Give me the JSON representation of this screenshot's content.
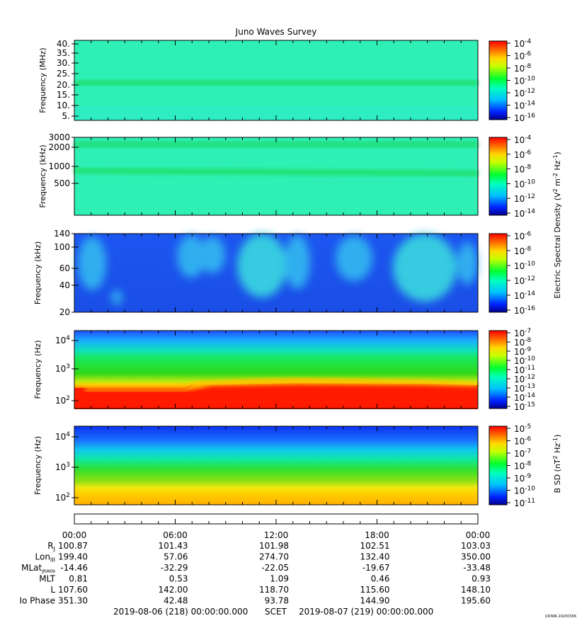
{
  "title": "Juno Waves Survey",
  "stamp": "UIOWA 20200306",
  "chart_data": {
    "type": "heatmap",
    "x_ticks": [
      "00:00",
      "06:00",
      "12:00",
      "18:00",
      "00:00"
    ],
    "panels": [
      {
        "ylabel": "Frequency (MHz)",
        "ytick_labels": [
          "40.",
          "35.",
          "30.",
          "25.",
          "20.",
          "15.",
          "10.",
          "5."
        ],
        "colorbar_ticks": [
          {
            "base": "10",
            "exp": "-4"
          },
          {
            "base": "10",
            "exp": "-6"
          },
          {
            "base": "10",
            "exp": "-8"
          },
          {
            "base": "10",
            "exp": "-10"
          },
          {
            "base": "10",
            "exp": "-12"
          },
          {
            "base": "10",
            "exp": "-14"
          },
          {
            "base": "10",
            "exp": "-16"
          }
        ]
      },
      {
        "ylabel": "Frequency (kHz)",
        "ytick_labels": [
          "3000",
          "2000",
          "1000",
          "500"
        ],
        "colorbar_ticks": [
          {
            "base": "10",
            "exp": "-4"
          },
          {
            "base": "10",
            "exp": "-6"
          },
          {
            "base": "10",
            "exp": "-8"
          },
          {
            "base": "10",
            "exp": "-10"
          },
          {
            "base": "10",
            "exp": "-12"
          },
          {
            "base": "10",
            "exp": "-14"
          }
        ]
      },
      {
        "ylabel": "Frequency (kHz)",
        "ytick_labels": [
          "140",
          "100",
          "60",
          "40",
          "20"
        ],
        "colorbar_ticks": [
          {
            "base": "10",
            "exp": "-6"
          },
          {
            "base": "10",
            "exp": "-8"
          },
          {
            "base": "10",
            "exp": "-10"
          },
          {
            "base": "10",
            "exp": "-12"
          },
          {
            "base": "10",
            "exp": "-14"
          },
          {
            "base": "10",
            "exp": "-16"
          }
        ]
      },
      {
        "ylabel": "Frequency (Hz)",
        "ytick_labels": [
          {
            "base": "10",
            "exp": "4"
          },
          {
            "base": "10",
            "exp": "3"
          },
          {
            "base": "10",
            "exp": "2"
          }
        ],
        "colorbar_ticks": [
          {
            "base": "10",
            "exp": "-7"
          },
          {
            "base": "10",
            "exp": "-8"
          },
          {
            "base": "10",
            "exp": "-9"
          },
          {
            "base": "10",
            "exp": "-10"
          },
          {
            "base": "10",
            "exp": "-11"
          },
          {
            "base": "10",
            "exp": "-12"
          },
          {
            "base": "10",
            "exp": "-13"
          },
          {
            "base": "10",
            "exp": "-14"
          },
          {
            "base": "10",
            "exp": "-15"
          }
        ]
      },
      {
        "ylabel": "Frequency (Hz)",
        "ytick_labels": [
          {
            "base": "10",
            "exp": "4"
          },
          {
            "base": "10",
            "exp": "3"
          },
          {
            "base": "10",
            "exp": "2"
          }
        ],
        "colorbar_ticks": [
          {
            "base": "10",
            "exp": "-5"
          },
          {
            "base": "10",
            "exp": "-6"
          },
          {
            "base": "10",
            "exp": "-7"
          },
          {
            "base": "10",
            "exp": "-8"
          },
          {
            "base": "10",
            "exp": "-9"
          },
          {
            "base": "10",
            "exp": "-10"
          },
          {
            "base": "10",
            "exp": "-11"
          }
        ]
      }
    ],
    "colorbar_labels": {
      "electric": {
        "prefix": "Electric Spectral Density (V",
        "sup1": "2",
        "mid": " m",
        "sup2": "-2",
        "mid2": " Hz",
        "sup3": "-1",
        "suffix": ")"
      },
      "magnetic": {
        "prefix": "B SD (nT",
        "sup1": "2",
        "mid": " Hz",
        "sup2": "-1",
        "suffix": ")"
      }
    },
    "ephemeris": [
      {
        "label": "R",
        "sub": "J",
        "values": [
          "100.87",
          "101.43",
          "101.98",
          "102.51",
          "103.03"
        ]
      },
      {
        "label": "Lon",
        "sub": "III",
        "values": [
          "199.40",
          "57.06",
          "274.70",
          "132.40",
          "350.00"
        ]
      },
      {
        "label": "MLat",
        "sub": "JRM09",
        "values": [
          "-14.46",
          "-32.29",
          "-22.05",
          "-19.67",
          "-33.48"
        ]
      },
      {
        "label": "MLT",
        "sub": "",
        "values": [
          "0.81",
          "0.53",
          "1.09",
          "0.46",
          "0.93"
        ]
      },
      {
        "label": "L",
        "sub": "",
        "values": [
          "107.60",
          "142.00",
          "118.70",
          "115.60",
          "148.10"
        ]
      },
      {
        "label": "Io Phase",
        "sub": "",
        "values": [
          "351.30",
          "42.48",
          "93.78",
          "144.90",
          "195.60"
        ]
      }
    ],
    "time_range": {
      "start": "2019-08-06 (218) 00:00:00.000",
      "label": "SCET",
      "end": "2019-08-07 (219) 00:00:00.000"
    },
    "colors": {
      "teal_bg": "#2ef0b4",
      "blue_bg": "#1a5af0",
      "red": "#ff1a00",
      "green": "#2ad81a",
      "yellow": "#ffe000"
    }
  }
}
